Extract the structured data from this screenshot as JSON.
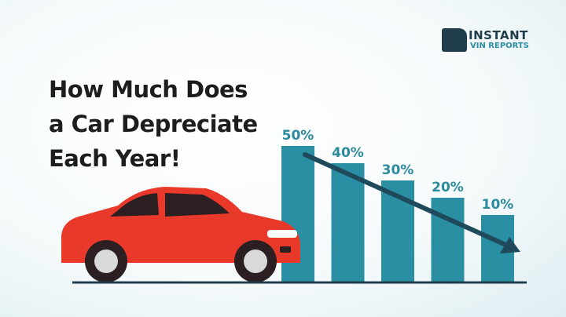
{
  "title_lines": [
    "How Much Does",
    "a Car Depreciate",
    "Each Year!"
  ],
  "logo": {
    "line1": "INSTANT",
    "line2": "VIN REPORTS"
  },
  "colors": {
    "bar": "#2b8fa4",
    "label": "#2b8a9c",
    "arrow": "#1f4a5c",
    "car": "#e8392b",
    "baseline": "#1f3d4a"
  },
  "chart_data": {
    "type": "bar",
    "title": "How Much Does a Car Depreciate Each Year!",
    "categories": [
      "",
      "",
      "",
      "",
      ""
    ],
    "values": [
      50,
      40,
      30,
      20,
      10
    ],
    "data_labels": [
      "50%",
      "40%",
      "30%",
      "20%",
      "10%"
    ],
    "grid": false,
    "trend_arrow": "downward"
  }
}
